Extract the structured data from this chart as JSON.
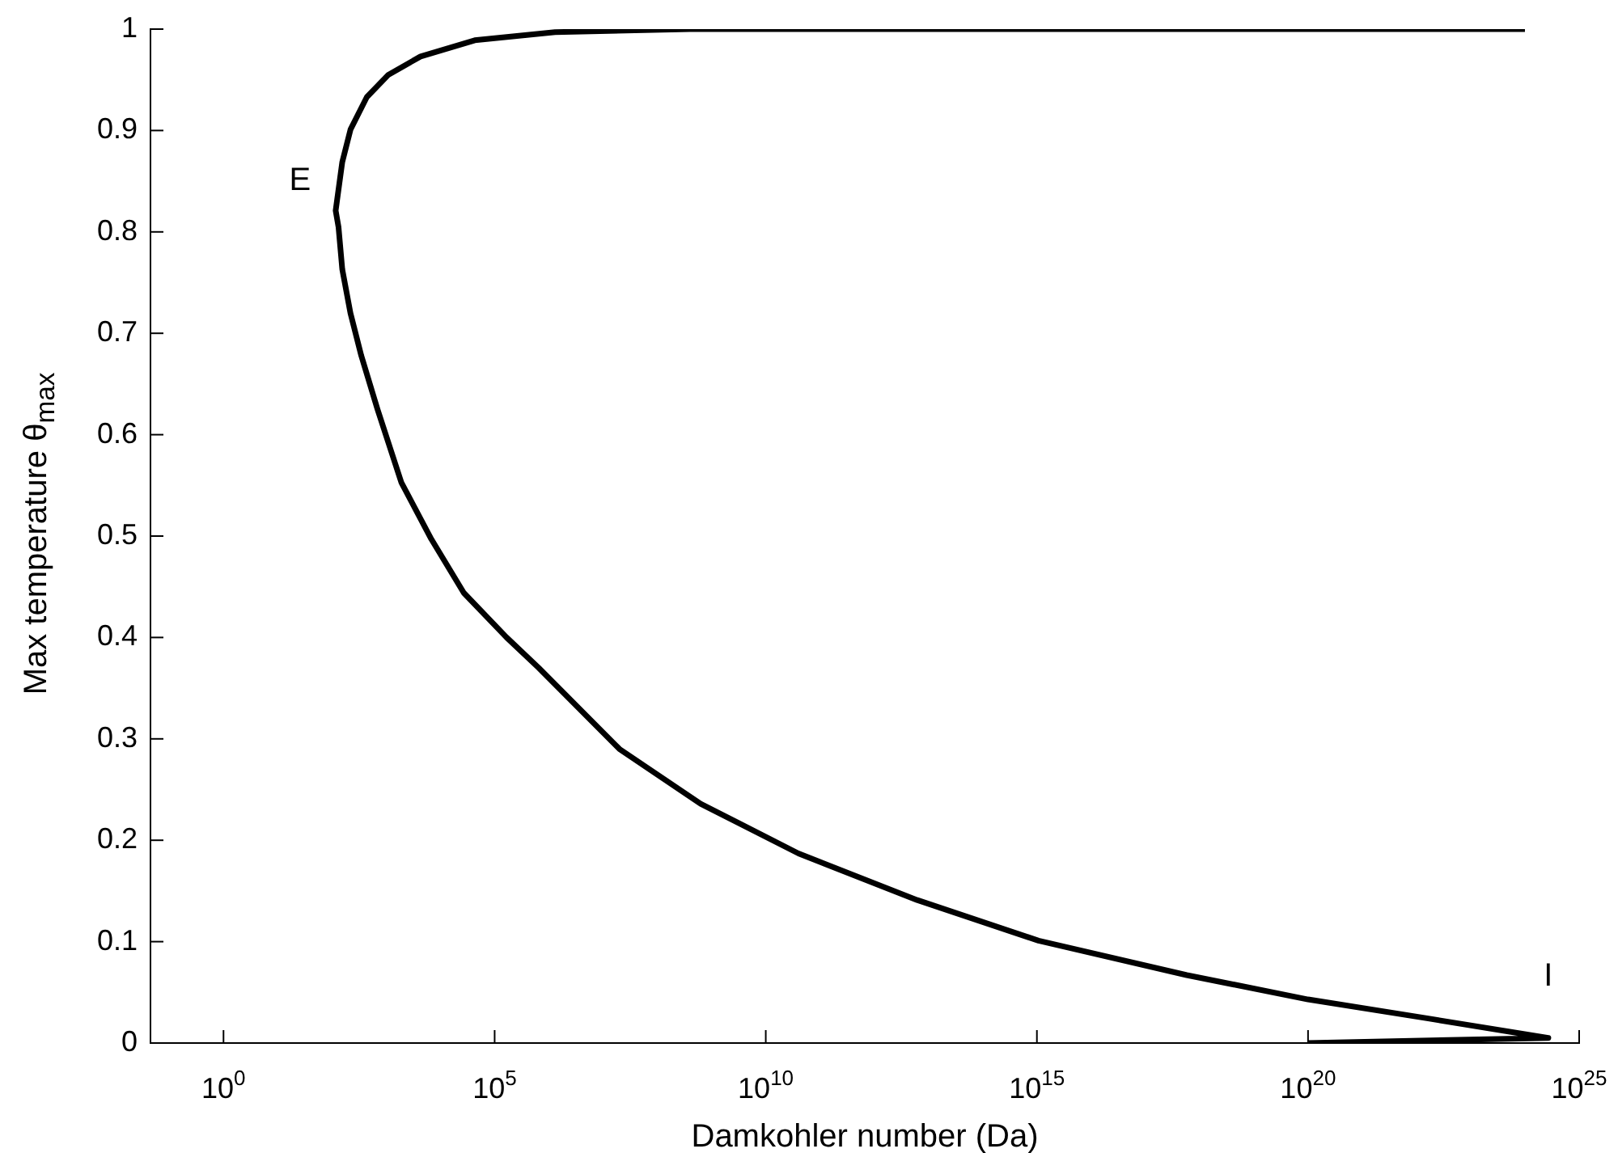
{
  "chart_data": {
    "type": "line",
    "xlabel": "Damkohler number (Da)",
    "ylabel": "Max temperature  θ$_{max}$",
    "log": "x",
    "marker": "none",
    "color": "#000000",
    "x": [
      1e+24,
      400000000.0,
      1300000.0,
      43000,
      4300,
      1100,
      440,
      220,
      155,
      117,
      132,
      155,
      219,
      347,
      692,
      1900,
      6800,
      27000,
      166000,
      650000,
      20000000.0,
      630000000.0,
      40000000000.0,
      6200000000000.0,
      1070000000000000.0,
      5.8e+17,
      1e+20,
      1.74e+22,
      2.7e+24,
      1e+20
    ],
    "values": [
      1,
      1,
      0.997,
      0.989,
      0.973,
      0.955,
      0.933,
      0.901,
      0.869,
      0.821,
      0.805,
      0.763,
      0.72,
      0.678,
      0.625,
      0.553,
      0.497,
      0.444,
      0.4,
      0.37,
      0.29,
      0.236,
      0.187,
      0.141,
      0.101,
      0.067,
      0.043,
      0.024,
      0.005,
      0
    ],
    "xlim": [
      0.045,
      1e+25
    ],
    "ylim": [
      0,
      1
    ],
    "xticks": [
      {
        "value": 1,
        "label": "10$^{0}$"
      },
      {
        "value": 100000,
        "label": "10$^{5}$"
      },
      {
        "value": 10000000000.0,
        "label": "10$^{10}$"
      },
      {
        "value": 1000000000000000.0,
        "label": "10$^{15}$"
      },
      {
        "value": 1e+20,
        "label": "10$^{20}$"
      },
      {
        "value": 1e+25,
        "label": "10$^{25}$"
      }
    ],
    "yticks": [
      0,
      0.1,
      0.2,
      0.3,
      0.4,
      0.5,
      0.6,
      0.7,
      0.8,
      0.9,
      1
    ],
    "annotations": [
      {
        "text": "E",
        "x": 117,
        "y": 0.821
      },
      {
        "text": "I",
        "x": 2.7e+24,
        "y": 0.005
      }
    ]
  }
}
